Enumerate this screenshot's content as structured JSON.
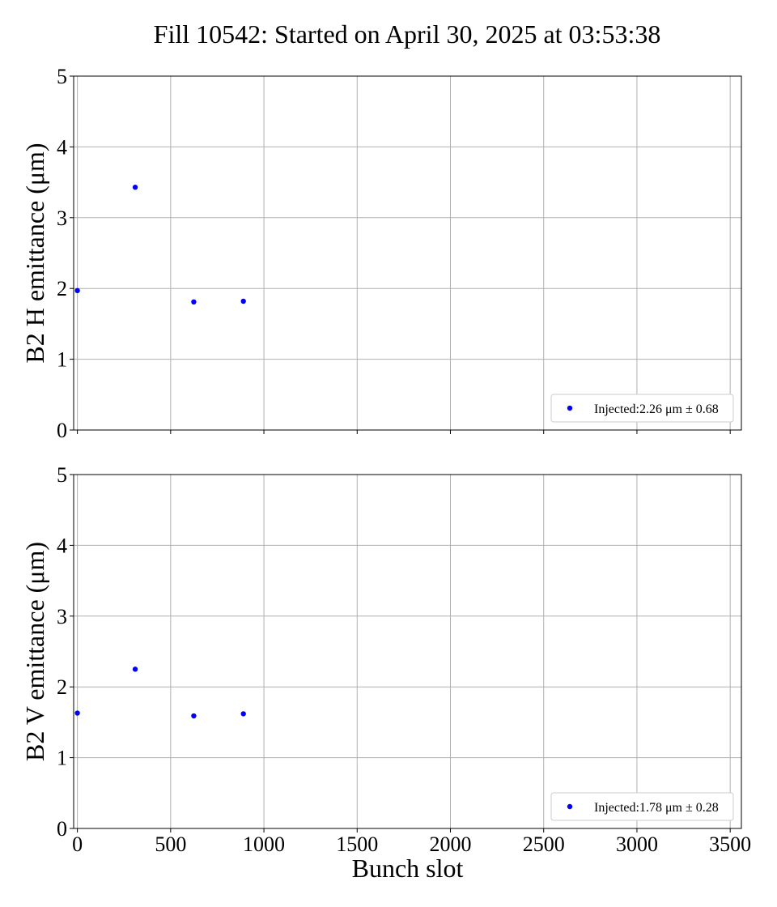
{
  "title": "Fill 10542: Started on April 30, 2025 at 03:53:38",
  "chart_data": [
    {
      "type": "scatter",
      "xlabel": "",
      "ylabel": "B2 H emittance (μm)",
      "xlim": [
        -20,
        3560
      ],
      "ylim": [
        0,
        5
      ],
      "xticks": [
        0,
        500,
        1000,
        1500,
        2000,
        2500,
        3000,
        3500
      ],
      "xtick_labels_visible": false,
      "yticks": [
        0,
        1,
        2,
        3,
        4,
        5
      ],
      "grid": true,
      "legend_position": "lower-right",
      "color": "#0000ff",
      "series": [
        {
          "name": "Injected:2.26 μm ± 0.68",
          "x": [
            0,
            310,
            624,
            890
          ],
          "y": [
            1.97,
            3.43,
            1.81,
            1.82
          ]
        }
      ]
    },
    {
      "type": "scatter",
      "xlabel": "Bunch slot",
      "ylabel": "B2 V emittance (μm)",
      "xlim": [
        -20,
        3560
      ],
      "ylim": [
        0,
        5
      ],
      "xticks": [
        0,
        500,
        1000,
        1500,
        2000,
        2500,
        3000,
        3500
      ],
      "xtick_labels_visible": true,
      "yticks": [
        0,
        1,
        2,
        3,
        4,
        5
      ],
      "grid": true,
      "legend_position": "lower-right",
      "color": "#0000ff",
      "series": [
        {
          "name": "Injected:1.78 μm ± 0.28",
          "x": [
            0,
            310,
            624,
            890
          ],
          "y": [
            1.63,
            2.25,
            1.59,
            1.62
          ]
        }
      ]
    }
  ]
}
